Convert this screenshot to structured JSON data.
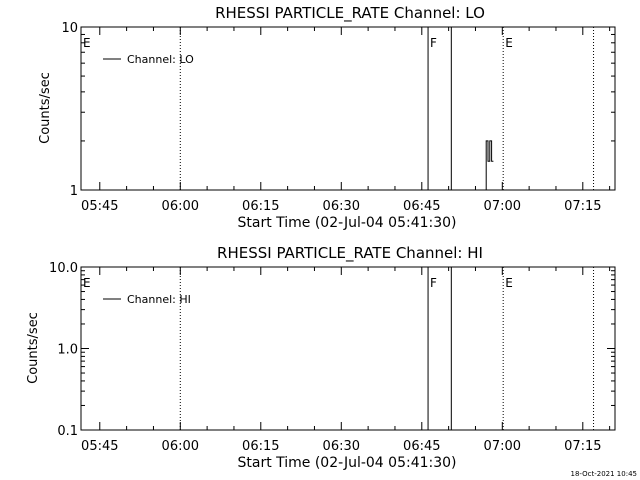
{
  "chart_data": [
    {
      "type": "line",
      "title": "RHESSI PARTICLE_RATE Channel: LO",
      "xlabel": "Start Time (02-Jul-04 05:41:30)",
      "ylabel": "Counts/sec",
      "yscale": "log",
      "ylim": [
        1,
        10
      ],
      "ytick_values": [
        1,
        10
      ],
      "ytick_labels": [
        "1",
        "10"
      ],
      "xlim": [
        "05:41:30",
        "07:21:00"
      ],
      "xtick_labels": [
        "05:45",
        "06:00",
        "06:15",
        "06:30",
        "06:45",
        "07:00",
        "07:15"
      ],
      "legend": {
        "label": "Channel: LO",
        "placement": "top-left"
      },
      "markers": [
        {
          "label": "E",
          "time": "05:41:30",
          "style": "none"
        },
        {
          "label": "",
          "time": "06:00:00",
          "style": "dotted"
        },
        {
          "label": "F",
          "time": "06:46:10",
          "style": "solid"
        },
        {
          "label": "",
          "time": "06:50:30",
          "style": "solid"
        },
        {
          "label": "E",
          "time": "07:00:10",
          "style": "dotted"
        },
        {
          "label": "",
          "time": "07:17:00",
          "style": "dotted"
        }
      ],
      "series": [
        {
          "name": "Channel: LO",
          "x": [
            "06:56:40",
            "06:57:00",
            "06:57:00",
            "06:57:20",
            "06:57:20",
            "06:57:40",
            "06:57:40",
            "06:58:00",
            "06:58:00",
            "06:58:20"
          ],
          "y": [
            1,
            1,
            2,
            2,
            1.5,
            1.5,
            2,
            2,
            1.5,
            1.5
          ]
        }
      ]
    },
    {
      "type": "line",
      "title": "RHESSI PARTICLE_RATE Channel: HI",
      "xlabel": "Start Time (02-Jul-04 05:41:30)",
      "ylabel": "Counts/sec",
      "yscale": "log",
      "ylim": [
        0.1,
        10
      ],
      "ytick_values": [
        0.1,
        1,
        10
      ],
      "ytick_labels": [
        "0.1",
        "1.0",
        "10.0"
      ],
      "xlim": [
        "05:41:30",
        "07:21:00"
      ],
      "xtick_labels": [
        "05:45",
        "06:00",
        "06:15",
        "06:30",
        "06:45",
        "07:00",
        "07:15"
      ],
      "legend": {
        "label": "Channel: HI",
        "placement": "top-left"
      },
      "markers": [
        {
          "label": "E",
          "time": "05:41:30",
          "style": "none"
        },
        {
          "label": "",
          "time": "06:00:00",
          "style": "dotted"
        },
        {
          "label": "F",
          "time": "06:46:10",
          "style": "solid"
        },
        {
          "label": "",
          "time": "06:50:30",
          "style": "solid"
        },
        {
          "label": "E",
          "time": "07:00:10",
          "style": "dotted"
        },
        {
          "label": "",
          "time": "07:17:00",
          "style": "dotted"
        }
      ],
      "series": []
    }
  ],
  "footer": {
    "timestamp": "18-Oct-2021 10:45"
  }
}
